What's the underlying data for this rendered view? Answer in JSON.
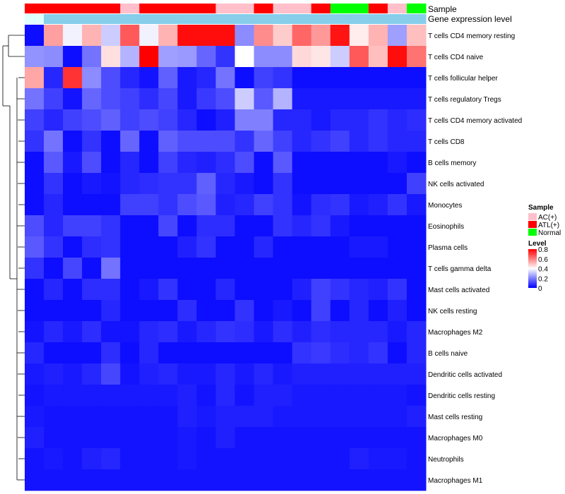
{
  "chart_data": {
    "type": "heatmap",
    "title": "",
    "xlabel": "",
    "ylabel": "",
    "annotation_rows": [
      "Sample",
      "Gene expression level"
    ],
    "sample_groups": [
      "ATL(+)",
      "ATL(+)",
      "ATL(+)",
      "ATL(+)",
      "ATL(+)",
      "AC(+)",
      "ATL(+)",
      "ATL(+)",
      "ATL(+)",
      "ATL(+)",
      "AC(+)",
      "AC(+)",
      "ATL(+)",
      "AC(+)",
      "AC(+)",
      "ATL(+)",
      "Normal",
      "Normal",
      "ATL(+)",
      "AC(+)",
      "Normal"
    ],
    "expression_levels": [
      "medium",
      "low",
      "low",
      "low",
      "low",
      "low",
      "low",
      "low",
      "low",
      "low",
      "low",
      "low",
      "low",
      "low",
      "low",
      "low",
      "low",
      "low",
      "low",
      "low",
      "low"
    ],
    "expression_colors": {
      "low": "#87CEEB",
      "medium": "#E0FFFF"
    },
    "row_labels": [
      "T cells CD4 memory resting",
      "T cells CD4 naive",
      "T cells follicular helper",
      "T cells regulatory  Tregs",
      "T cells CD4 memory activated",
      "T cells CD8",
      "B cells memory",
      "NK cells activated",
      "Monocytes",
      "Eosinophils",
      "Plasma cells",
      "T cells gamma delta",
      "Mast cells activated",
      "NK cells resting",
      "Macrophages M2",
      "B cells naive",
      "Dendritic cells activated",
      "Dendritic cells resting",
      "Mast cells resting",
      "Macrophages M0",
      "Neutrophils",
      "Macrophages M1"
    ],
    "values": [
      [
        0.02,
        0.55,
        0.38,
        0.52,
        0.32,
        0.66,
        0.38,
        0.52,
        0.78,
        0.78,
        0.78,
        0.22,
        0.58,
        0.48,
        0.64,
        0.56,
        0.77,
        0.43,
        0.52,
        0.25,
        0.5
      ],
      [
        0.23,
        0.22,
        0.02,
        0.18,
        0.45,
        0.28,
        0.8,
        0.25,
        0.24,
        0.16,
        0.08,
        0.4,
        0.22,
        0.22,
        0.46,
        0.44,
        0.32,
        0.66,
        0.5,
        0.78,
        0.62
      ],
      [
        0.54,
        0.06,
        0.72,
        0.22,
        0.12,
        0.06,
        0.03,
        0.15,
        0.04,
        0.06,
        0.18,
        0.02,
        0.1,
        0.08,
        0.02,
        0.02,
        0.02,
        0.02,
        0.02,
        0.02,
        0.02
      ],
      [
        0.18,
        0.1,
        0.03,
        0.16,
        0.12,
        0.1,
        0.07,
        0.11,
        0.04,
        0.09,
        0.12,
        0.32,
        0.14,
        0.28,
        0.04,
        0.04,
        0.04,
        0.04,
        0.04,
        0.04,
        0.04
      ],
      [
        0.1,
        0.06,
        0.1,
        0.12,
        0.15,
        0.1,
        0.12,
        0.1,
        0.06,
        0.02,
        0.05,
        0.2,
        0.2,
        0.06,
        0.06,
        0.04,
        0.06,
        0.06,
        0.08,
        0.06,
        0.07
      ],
      [
        0.08,
        0.18,
        0.02,
        0.08,
        0.02,
        0.16,
        0.02,
        0.15,
        0.12,
        0.12,
        0.12,
        0.08,
        0.16,
        0.1,
        0.06,
        0.08,
        0.1,
        0.06,
        0.08,
        0.06,
        0.06
      ],
      [
        0.02,
        0.14,
        0.04,
        0.12,
        0.02,
        0.06,
        0.02,
        0.1,
        0.06,
        0.05,
        0.07,
        0.12,
        0.02,
        0.14,
        0.02,
        0.02,
        0.02,
        0.02,
        0.02,
        0.04,
        0.02
      ],
      [
        0.02,
        0.08,
        0.02,
        0.04,
        0.03,
        0.06,
        0.07,
        0.08,
        0.08,
        0.15,
        0.06,
        0.04,
        0.02,
        0.08,
        0.02,
        0.02,
        0.02,
        0.02,
        0.02,
        0.02,
        0.1
      ],
      [
        0.02,
        0.06,
        0.02,
        0.02,
        0.02,
        0.1,
        0.1,
        0.08,
        0.12,
        0.14,
        0.05,
        0.06,
        0.1,
        0.08,
        0.03,
        0.07,
        0.08,
        0.04,
        0.05,
        0.08,
        0.04
      ],
      [
        0.12,
        0.06,
        0.1,
        0.1,
        0.08,
        0.02,
        0.02,
        0.11,
        0.02,
        0.07,
        0.07,
        0.02,
        0.02,
        0.08,
        0.06,
        0.08,
        0.04,
        0.02,
        0.02,
        0.02,
        0.02
      ],
      [
        0.14,
        0.08,
        0.02,
        0.07,
        0.08,
        0.02,
        0.02,
        0.02,
        0.05,
        0.08,
        0.02,
        0.02,
        0.06,
        0.02,
        0.02,
        0.02,
        0.02,
        0.04,
        0.04,
        0.02,
        0.02
      ],
      [
        0.08,
        0.02,
        0.11,
        0.02,
        0.18,
        0.02,
        0.02,
        0.02,
        0.02,
        0.02,
        0.02,
        0.02,
        0.02,
        0.02,
        0.02,
        0.02,
        0.02,
        0.02,
        0.02,
        0.02,
        0.02
      ],
      [
        0.02,
        0.06,
        0.02,
        0.07,
        0.07,
        0.02,
        0.04,
        0.08,
        0.02,
        0.02,
        0.06,
        0.02,
        0.02,
        0.02,
        0.05,
        0.1,
        0.08,
        0.06,
        0.05,
        0.08,
        0.02
      ],
      [
        0.02,
        0.02,
        0.02,
        0.02,
        0.06,
        0.02,
        0.02,
        0.02,
        0.07,
        0.02,
        0.02,
        0.08,
        0.02,
        0.04,
        0.02,
        0.1,
        0.02,
        0.06,
        0.02,
        0.05,
        0.02
      ],
      [
        0.03,
        0.06,
        0.04,
        0.07,
        0.03,
        0.03,
        0.06,
        0.07,
        0.04,
        0.06,
        0.08,
        0.07,
        0.04,
        0.07,
        0.05,
        0.07,
        0.06,
        0.06,
        0.06,
        0.04,
        0.06
      ],
      [
        0.06,
        0.02,
        0.02,
        0.02,
        0.07,
        0.02,
        0.06,
        0.02,
        0.02,
        0.02,
        0.02,
        0.02,
        0.02,
        0.02,
        0.08,
        0.09,
        0.07,
        0.06,
        0.08,
        0.02,
        0.06
      ],
      [
        0.04,
        0.05,
        0.04,
        0.06,
        0.11,
        0.03,
        0.05,
        0.06,
        0.04,
        0.04,
        0.06,
        0.04,
        0.06,
        0.04,
        0.05,
        0.05,
        0.05,
        0.05,
        0.05,
        0.05,
        0.05
      ],
      [
        0.03,
        0.04,
        0.04,
        0.04,
        0.04,
        0.04,
        0.04,
        0.04,
        0.05,
        0.03,
        0.06,
        0.03,
        0.05,
        0.05,
        0.04,
        0.04,
        0.04,
        0.04,
        0.04,
        0.04,
        0.03
      ],
      [
        0.04,
        0.03,
        0.03,
        0.03,
        0.03,
        0.03,
        0.03,
        0.03,
        0.05,
        0.04,
        0.05,
        0.05,
        0.05,
        0.04,
        0.04,
        0.04,
        0.04,
        0.04,
        0.04,
        0.04,
        0.05
      ],
      [
        0.05,
        0.03,
        0.03,
        0.03,
        0.03,
        0.03,
        0.03,
        0.03,
        0.04,
        0.03,
        0.05,
        0.03,
        0.03,
        0.03,
        0.03,
        0.03,
        0.03,
        0.03,
        0.03,
        0.03,
        0.03
      ],
      [
        0.03,
        0.04,
        0.03,
        0.05,
        0.06,
        0.03,
        0.03,
        0.03,
        0.04,
        0.03,
        0.03,
        0.03,
        0.03,
        0.03,
        0.03,
        0.03,
        0.03,
        0.05,
        0.04,
        0.04,
        0.03
      ],
      [
        0.03,
        0.03,
        0.03,
        0.03,
        0.03,
        0.03,
        0.03,
        0.03,
        0.03,
        0.03,
        0.03,
        0.03,
        0.03,
        0.03,
        0.03,
        0.03,
        0.03,
        0.03,
        0.03,
        0.03,
        0.03
      ]
    ],
    "legend": {
      "sample_title": "Sample",
      "sample_entries": [
        {
          "label": "AC(+)",
          "color": "#FFC0CB"
        },
        {
          "label": "ATL(+)",
          "color": "#FF0000"
        },
        {
          "label": "Normal",
          "color": "#00FF00"
        }
      ],
      "level_title": "Level",
      "level_ticks": [
        "0.8",
        "0.6",
        "0.4",
        "0.2",
        "0"
      ],
      "level_tick_values": [
        0.8,
        0.6,
        0.4,
        0.2,
        0
      ]
    },
    "color_scale": {
      "low": "#0000FF",
      "mid": "#FFFFFF",
      "high": "#FF0000",
      "min": 0,
      "mid_value": 0.4,
      "max": 0.8
    },
    "legend_position": "right"
  }
}
